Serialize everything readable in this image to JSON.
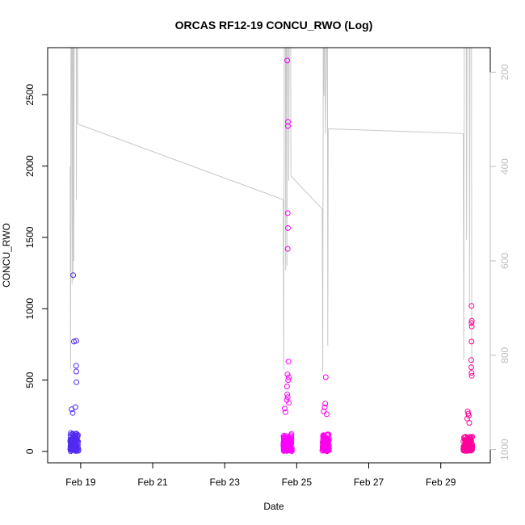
{
  "chart_data": {
    "type": "scatter",
    "title": "ORCAS RF12-19 CONCU_RWO (Log)",
    "xlabel": "Date",
    "ylabel": "CONCU_RWO",
    "xlim": [
      "2016-02-18 02:00",
      "2016-03-01 09:00"
    ],
    "ylim": [
      -80,
      2830
    ],
    "ylim_right": [
      1028,
      148
    ],
    "right_axis_reversed": true,
    "x_ticks": [
      {
        "date": "2016-02-19",
        "label": "Feb 19"
      },
      {
        "date": "2016-02-21",
        "label": "Feb 21"
      },
      {
        "date": "2016-02-23",
        "label": "Feb 23"
      },
      {
        "date": "2016-02-25",
        "label": "Feb 25"
      },
      {
        "date": "2016-02-27",
        "label": "Feb 27"
      },
      {
        "date": "2016-02-29",
        "label": "Feb 29"
      }
    ],
    "y_ticks": [
      0,
      500,
      1000,
      1500,
      2000,
      2500
    ],
    "y_ticks_right": [
      200,
      400,
      600,
      800,
      1000
    ],
    "grid": false,
    "legend": "none",
    "colors": {
      "axis": "#000000",
      "right_axis": "#bdbdbd",
      "pressure_line": "#c8c8c8",
      "point_gradient_start": "#3c2ff0",
      "point_gradient_mid": "#ff00ff",
      "point_gradient_end": "#ff0090"
    },
    "pressure_series": {
      "name": "pressure",
      "points": [
        [
          "2016-02-18 17:00",
          400
        ],
        [
          "2016-02-18 17:15",
          830
        ],
        [
          "2016-02-18 17:30",
          148
        ],
        [
          "2016-02-18 18:00",
          148
        ],
        [
          "2016-02-18 18:15",
          650
        ],
        [
          "2016-02-18 18:25",
          148
        ],
        [
          "2016-02-18 18:40",
          148
        ],
        [
          "2016-02-18 18:50",
          640
        ],
        [
          "2016-02-18 19:00",
          148
        ],
        [
          "2016-02-18 19:20",
          148
        ],
        [
          "2016-02-18 19:30",
          600
        ],
        [
          "2016-02-18 19:40",
          148
        ],
        [
          "2016-02-18 21:00",
          148
        ],
        [
          "2016-02-18 21:10",
          470
        ],
        [
          "2016-02-18 21:20",
          148
        ],
        [
          "2016-02-18 22:00",
          148
        ],
        [
          "2016-02-18 22:10",
          310
        ],
        [
          "2016-02-24 15:00",
          470
        ],
        [
          "2016-02-24 15:20",
          830
        ],
        [
          "2016-02-24 15:40",
          148
        ],
        [
          "2016-02-24 16:30",
          148
        ],
        [
          "2016-02-24 16:40",
          620
        ],
        [
          "2016-02-24 16:50",
          148
        ],
        [
          "2016-02-24 17:20",
          148
        ],
        [
          "2016-02-24 17:30",
          610
        ],
        [
          "2016-02-24 17:40",
          148
        ],
        [
          "2016-02-24 18:30",
          148
        ],
        [
          "2016-02-24 18:40",
          430
        ],
        [
          "2016-02-24 19:00",
          148
        ],
        [
          "2016-02-24 20:00",
          148
        ],
        [
          "2016-02-24 20:10",
          420
        ],
        [
          "2016-02-25 17:00",
          490
        ],
        [
          "2016-02-25 17:20",
          835
        ],
        [
          "2016-02-25 17:40",
          148
        ],
        [
          "2016-02-25 18:00",
          148
        ],
        [
          "2016-02-25 18:10",
          250
        ],
        [
          "2016-02-25 18:30",
          148
        ],
        [
          "2016-02-25 19:00",
          148
        ],
        [
          "2016-02-25 19:10",
          330
        ],
        [
          "2016-02-25 20:00",
          148
        ],
        [
          "2016-02-25 20:30",
          148
        ],
        [
          "2016-02-25 20:40",
          780
        ],
        [
          "2016-02-25 21:00",
          320
        ],
        [
          "2016-02-29 15:00",
          330
        ],
        [
          "2016-02-29 15:20",
          810
        ],
        [
          "2016-02-29 15:40",
          148
        ],
        [
          "2016-02-29 17:00",
          148
        ],
        [
          "2016-02-29 17:10",
          555
        ],
        [
          "2016-02-29 17:30",
          148
        ],
        [
          "2016-02-29 19:00",
          148
        ],
        [
          "2016-02-29 19:10",
          700
        ],
        [
          "2016-02-29 19:30",
          148
        ],
        [
          "2016-02-29 20:30",
          148
        ],
        [
          "2016-02-29 20:40",
          830
        ]
      ]
    },
    "flights": [
      {
        "start": "2016-02-18 17:00",
        "end": "2016-02-18 22:30",
        "seed": 11,
        "n": 110,
        "base_hi": 120,
        "outliers": [
          [
            "2016-02-18 19:00",
            1235
          ],
          [
            "2016-02-18 19:30",
            770
          ],
          [
            "2016-02-18 21:00",
            775
          ],
          [
            "2016-02-18 21:00",
            600
          ],
          [
            "2016-02-18 21:05",
            560
          ],
          [
            "2016-02-18 21:10",
            485
          ],
          [
            "2016-02-18 20:30",
            310
          ],
          [
            "2016-02-18 18:00",
            295
          ],
          [
            "2016-02-18 18:40",
            270
          ]
        ]
      },
      {
        "start": "2016-02-24 15:00",
        "end": "2016-02-24 20:45",
        "seed": 23,
        "n": 120,
        "base_hi": 110,
        "outliers": [
          [
            "2016-02-24 17:40",
            2740
          ],
          [
            "2016-02-24 18:10",
            2310
          ],
          [
            "2016-02-24 18:05",
            2280
          ],
          [
            "2016-02-24 18:00",
            1670
          ],
          [
            "2016-02-24 18:10",
            1565
          ],
          [
            "2016-02-24 18:00",
            1420
          ],
          [
            "2016-02-24 18:30",
            630
          ],
          [
            "2016-02-24 17:50",
            540
          ],
          [
            "2016-02-24 18:40",
            520
          ],
          [
            "2016-02-24 18:20",
            500
          ],
          [
            "2016-02-24 17:30",
            455
          ],
          [
            "2016-02-24 17:40",
            400
          ],
          [
            "2016-02-24 18:00",
            380
          ],
          [
            "2016-02-24 17:20",
            360
          ],
          [
            "2016-02-24 18:40",
            340
          ],
          [
            "2016-02-24 16:00",
            300
          ],
          [
            "2016-02-24 16:30",
            275
          ]
        ]
      },
      {
        "start": "2016-02-25 17:00",
        "end": "2016-02-25 21:30",
        "seed": 37,
        "n": 95,
        "base_hi": 110,
        "outliers": [
          [
            "2016-02-25 19:20",
            520
          ],
          [
            "2016-02-25 19:00",
            335
          ],
          [
            "2016-02-25 18:40",
            310
          ],
          [
            "2016-02-25 18:00",
            280
          ],
          [
            "2016-02-25 20:00",
            260
          ]
        ]
      },
      {
        "start": "2016-02-29 15:00",
        "end": "2016-02-29 21:00",
        "seed": 53,
        "n": 105,
        "base_hi": 100,
        "outliers": [
          [
            "2016-02-29 20:30",
            1020
          ],
          [
            "2016-02-29 20:40",
            915
          ],
          [
            "2016-02-29 20:30",
            900
          ],
          [
            "2016-02-29 20:40",
            875
          ],
          [
            "2016-02-29 20:30",
            770
          ],
          [
            "2016-02-29 20:20",
            640
          ],
          [
            "2016-02-29 20:20",
            590
          ],
          [
            "2016-02-29 20:30",
            550
          ],
          [
            "2016-02-29 20:40",
            530
          ],
          [
            "2016-02-29 18:00",
            280
          ],
          [
            "2016-02-29 18:20",
            265
          ],
          [
            "2016-02-29 18:40",
            250
          ],
          [
            "2016-02-29 17:40",
            230
          ],
          [
            "2016-02-29 19:00",
            200
          ]
        ]
      }
    ]
  }
}
